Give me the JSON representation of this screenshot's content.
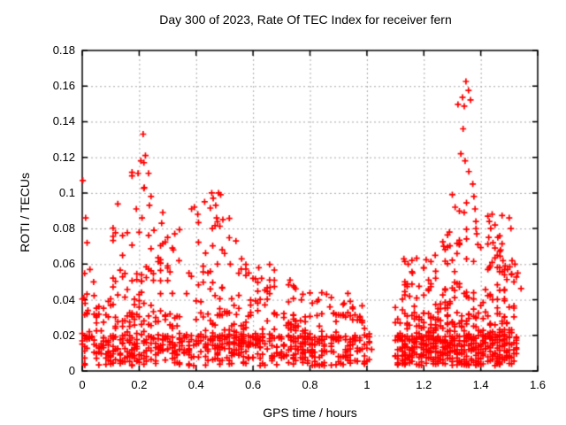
{
  "chart_data": {
    "type": "scatter",
    "title": "Day 300 of 2023, Rate Of TEC Index for receiver fern",
    "xlabel": "GPS time / hours",
    "ylabel": "ROTI / TECUs",
    "xlim": [
      0,
      1.6
    ],
    "ylim": [
      0,
      0.18
    ],
    "xticks": [
      0,
      0.2,
      0.4,
      0.6,
      0.8,
      1,
      1.2,
      1.4,
      1.6
    ],
    "xtick_labels": [
      "0",
      "0.2",
      "0.4",
      "0.6",
      "0.8",
      "1",
      "1.2",
      "1.4",
      "1.6"
    ],
    "yticks": [
      0,
      0.02,
      0.04,
      0.06,
      0.08,
      0.1,
      0.12,
      0.14,
      0.16,
      0.18
    ],
    "ytick_labels": [
      "0",
      "0.02",
      "0.04",
      "0.06",
      "0.08",
      "0.1",
      "0.12",
      "0.14",
      "0.16",
      "0.18"
    ],
    "grid": "dotted",
    "legend": "none",
    "marker": "plus",
    "marker_size": 3.5,
    "colors": {
      "points": "#ff0000",
      "grid": "#a8a8a8",
      "axis": "#000000",
      "background": "#ffffff",
      "text": "#000000"
    },
    "data_gap_x": [
      1.013,
      1.102
    ],
    "x_quantum": 0.008333,
    "prng_seed": 7,
    "notable_points": [
      [
        0.002,
        0.107
      ],
      [
        0.012,
        0.086
      ],
      [
        0.017,
        0.072
      ],
      [
        0.027,
        0.057
      ],
      [
        0.04,
        0.05
      ],
      [
        0.006,
        0.041
      ],
      [
        0.01,
        0.038
      ],
      [
        0.02,
        0.034
      ],
      [
        0.214,
        0.133
      ],
      [
        0.222,
        0.121
      ],
      [
        0.206,
        0.118
      ],
      [
        0.196,
        0.111
      ],
      [
        0.233,
        0.111
      ],
      [
        0.218,
        0.103
      ],
      [
        0.19,
        0.091
      ],
      [
        0.236,
        0.093
      ],
      [
        0.21,
        0.086
      ],
      [
        0.283,
        0.089
      ],
      [
        0.279,
        0.083
      ],
      [
        0.252,
        0.079
      ],
      [
        0.3,
        0.075
      ],
      [
        0.32,
        0.068
      ],
      [
        0.34,
        0.062
      ],
      [
        0.384,
        0.091
      ],
      [
        0.394,
        0.092
      ],
      [
        0.406,
        0.088
      ],
      [
        0.43,
        0.095
      ],
      [
        0.455,
        0.1
      ],
      [
        0.46,
        0.097
      ],
      [
        0.469,
        0.093
      ],
      [
        0.479,
        0.1
      ],
      [
        0.486,
        0.099
      ],
      [
        0.472,
        0.086
      ],
      [
        0.494,
        0.085
      ],
      [
        0.457,
        0.08
      ],
      [
        0.5,
        0.066
      ],
      [
        0.52,
        0.06
      ],
      [
        0.54,
        0.073
      ],
      [
        0.56,
        0.063
      ],
      [
        0.585,
        0.055
      ],
      [
        0.6,
        0.052
      ],
      [
        0.62,
        0.058
      ],
      [
        0.63,
        0.052
      ],
      [
        0.66,
        0.047
      ],
      [
        0.73,
        0.051
      ],
      [
        0.745,
        0.047
      ],
      [
        0.77,
        0.04
      ],
      [
        0.83,
        0.04
      ],
      [
        0.87,
        0.036
      ],
      [
        0.92,
        0.038
      ],
      [
        0.95,
        0.035
      ],
      [
        1.13,
        0.063
      ],
      [
        1.145,
        0.06
      ],
      [
        1.16,
        0.055
      ],
      [
        1.2,
        0.058
      ],
      [
        1.24,
        0.065
      ],
      [
        1.27,
        0.07
      ],
      [
        1.29,
        0.078
      ],
      [
        1.3,
        0.099
      ],
      [
        1.31,
        0.092
      ],
      [
        1.348,
        0.1626
      ],
      [
        1.357,
        0.1576
      ],
      [
        1.336,
        0.1537
      ],
      [
        1.364,
        0.1522
      ],
      [
        1.32,
        0.1497
      ],
      [
        1.342,
        0.1487
      ],
      [
        1.338,
        0.136
      ],
      [
        1.33,
        0.122
      ],
      [
        1.345,
        0.118
      ],
      [
        1.358,
        0.112
      ],
      [
        1.372,
        0.105
      ],
      [
        1.376,
        0.098
      ],
      [
        1.38,
        0.091
      ],
      [
        1.383,
        0.084
      ],
      [
        1.386,
        0.077
      ],
      [
        1.39,
        0.071
      ],
      [
        1.425,
        0.087
      ],
      [
        1.43,
        0.084
      ],
      [
        1.435,
        0.08
      ],
      [
        1.44,
        0.088
      ],
      [
        1.45,
        0.082
      ],
      [
        1.428,
        0.075
      ],
      [
        1.443,
        0.072
      ],
      [
        1.46,
        0.075
      ],
      [
        1.47,
        0.068
      ],
      [
        1.5,
        0.086
      ],
      [
        1.506,
        0.08
      ],
      [
        1.52,
        0.06
      ],
      [
        1.53,
        0.055
      ],
      [
        1.43,
        0.058
      ],
      [
        1.44,
        0.061
      ],
      [
        1.45,
        0.0635
      ],
      [
        1.458,
        0.065
      ],
      [
        1.468,
        0.0645
      ],
      [
        1.478,
        0.062
      ],
      [
        1.486,
        0.059
      ],
      [
        1.494,
        0.057
      ],
      [
        1.502,
        0.0585
      ],
      [
        1.51,
        0.062
      ]
    ],
    "clusters": [
      {
        "x": [
          0.0,
          1.013
        ],
        "y": [
          0.003,
          0.02
        ],
        "n": 500,
        "skew": 1.0
      },
      {
        "x": [
          0.0,
          1.013
        ],
        "y": [
          0.017,
          0.033
        ],
        "n": 170,
        "skew": 1.25
      },
      {
        "x": [
          0.0,
          0.35
        ],
        "y": [
          0.03,
          0.055
        ],
        "n": 48,
        "skew": 1.4
      },
      {
        "x": [
          0.35,
          0.72
        ],
        "y": [
          0.03,
          0.055
        ],
        "n": 40,
        "skew": 1.4
      },
      {
        "x": [
          0.72,
          1.013
        ],
        "y": [
          0.027,
          0.044
        ],
        "n": 22,
        "skew": 1.3
      },
      {
        "x": [
          0.1,
          0.3
        ],
        "y": [
          0.05,
          0.095
        ],
        "n": 28,
        "skew": 1.35
      },
      {
        "x": [
          0.17,
          0.25
        ],
        "y": [
          0.095,
          0.125
        ],
        "n": 5,
        "skew": 1.0
      },
      {
        "x": [
          0.26,
          0.36
        ],
        "y": [
          0.055,
          0.082
        ],
        "n": 10,
        "skew": 1.1
      },
      {
        "x": [
          0.4,
          0.52
        ],
        "y": [
          0.055,
          0.092
        ],
        "n": 16,
        "skew": 1.2
      },
      {
        "x": [
          0.55,
          0.68
        ],
        "y": [
          0.038,
          0.06
        ],
        "n": 14,
        "skew": 1.2
      },
      {
        "x": [
          0.72,
          0.78
        ],
        "y": [
          0.038,
          0.052
        ],
        "n": 6,
        "skew": 1.0
      },
      {
        "x": [
          0.88,
          0.98
        ],
        "y": [
          0.03,
          0.04
        ],
        "n": 6,
        "skew": 1.0
      },
      {
        "x": [
          1.102,
          1.53
        ],
        "y": [
          0.003,
          0.02
        ],
        "n": 340,
        "skew": 1.0
      },
      {
        "x": [
          1.102,
          1.53
        ],
        "y": [
          0.017,
          0.033
        ],
        "n": 130,
        "skew": 1.25
      },
      {
        "x": [
          1.102,
          1.53
        ],
        "y": [
          0.03,
          0.05
        ],
        "n": 62,
        "skew": 1.35
      },
      {
        "x": [
          1.11,
          1.18
        ],
        "y": [
          0.04,
          0.065
        ],
        "n": 12,
        "skew": 1.2
      },
      {
        "x": [
          1.2,
          1.33
        ],
        "y": [
          0.045,
          0.075
        ],
        "n": 20,
        "skew": 1.25
      },
      {
        "x": [
          1.28,
          1.4
        ],
        "y": [
          0.06,
          0.1
        ],
        "n": 16,
        "skew": 1.2
      },
      {
        "x": [
          1.42,
          1.5
        ],
        "y": [
          0.055,
          0.09
        ],
        "n": 12,
        "skew": 1.2
      },
      {
        "x": [
          1.46,
          1.54
        ],
        "y": [
          0.035,
          0.06
        ],
        "n": 12,
        "skew": 1.2
      }
    ]
  }
}
